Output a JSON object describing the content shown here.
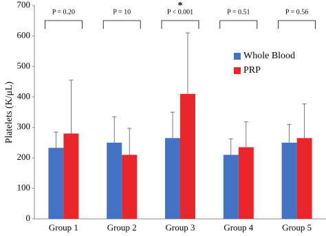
{
  "chart_data": {
    "type": "bar",
    "y_label": "Platelets (K/μL)",
    "categories": [
      "Group 1",
      "Group 2",
      "Group 3",
      "Group 4",
      "Group 5"
    ],
    "series": [
      {
        "name": "Whole Blood",
        "color": "#4472c4",
        "values": [
          233,
          250,
          265,
          210,
          250
        ],
        "errors": [
          52,
          85,
          85,
          52,
          60
        ]
      },
      {
        "name": "PRP",
        "color": "#e8262b",
        "values": [
          280,
          210,
          410,
          235,
          265
        ],
        "errors": [
          175,
          87,
          200,
          83,
          112
        ]
      }
    ],
    "annotations": [
      "P = 0.20",
      "P = 10",
      "P < 0.001",
      "P = 0.51",
      "P = 0.56"
    ],
    "markers": [
      {
        "category": "Group 3",
        "text": "*"
      }
    ],
    "ylim": [
      0,
      700
    ],
    "yticks": [
      0,
      100,
      200,
      300,
      400,
      500,
      600,
      700
    ],
    "legend": "right",
    "grid": false
  }
}
